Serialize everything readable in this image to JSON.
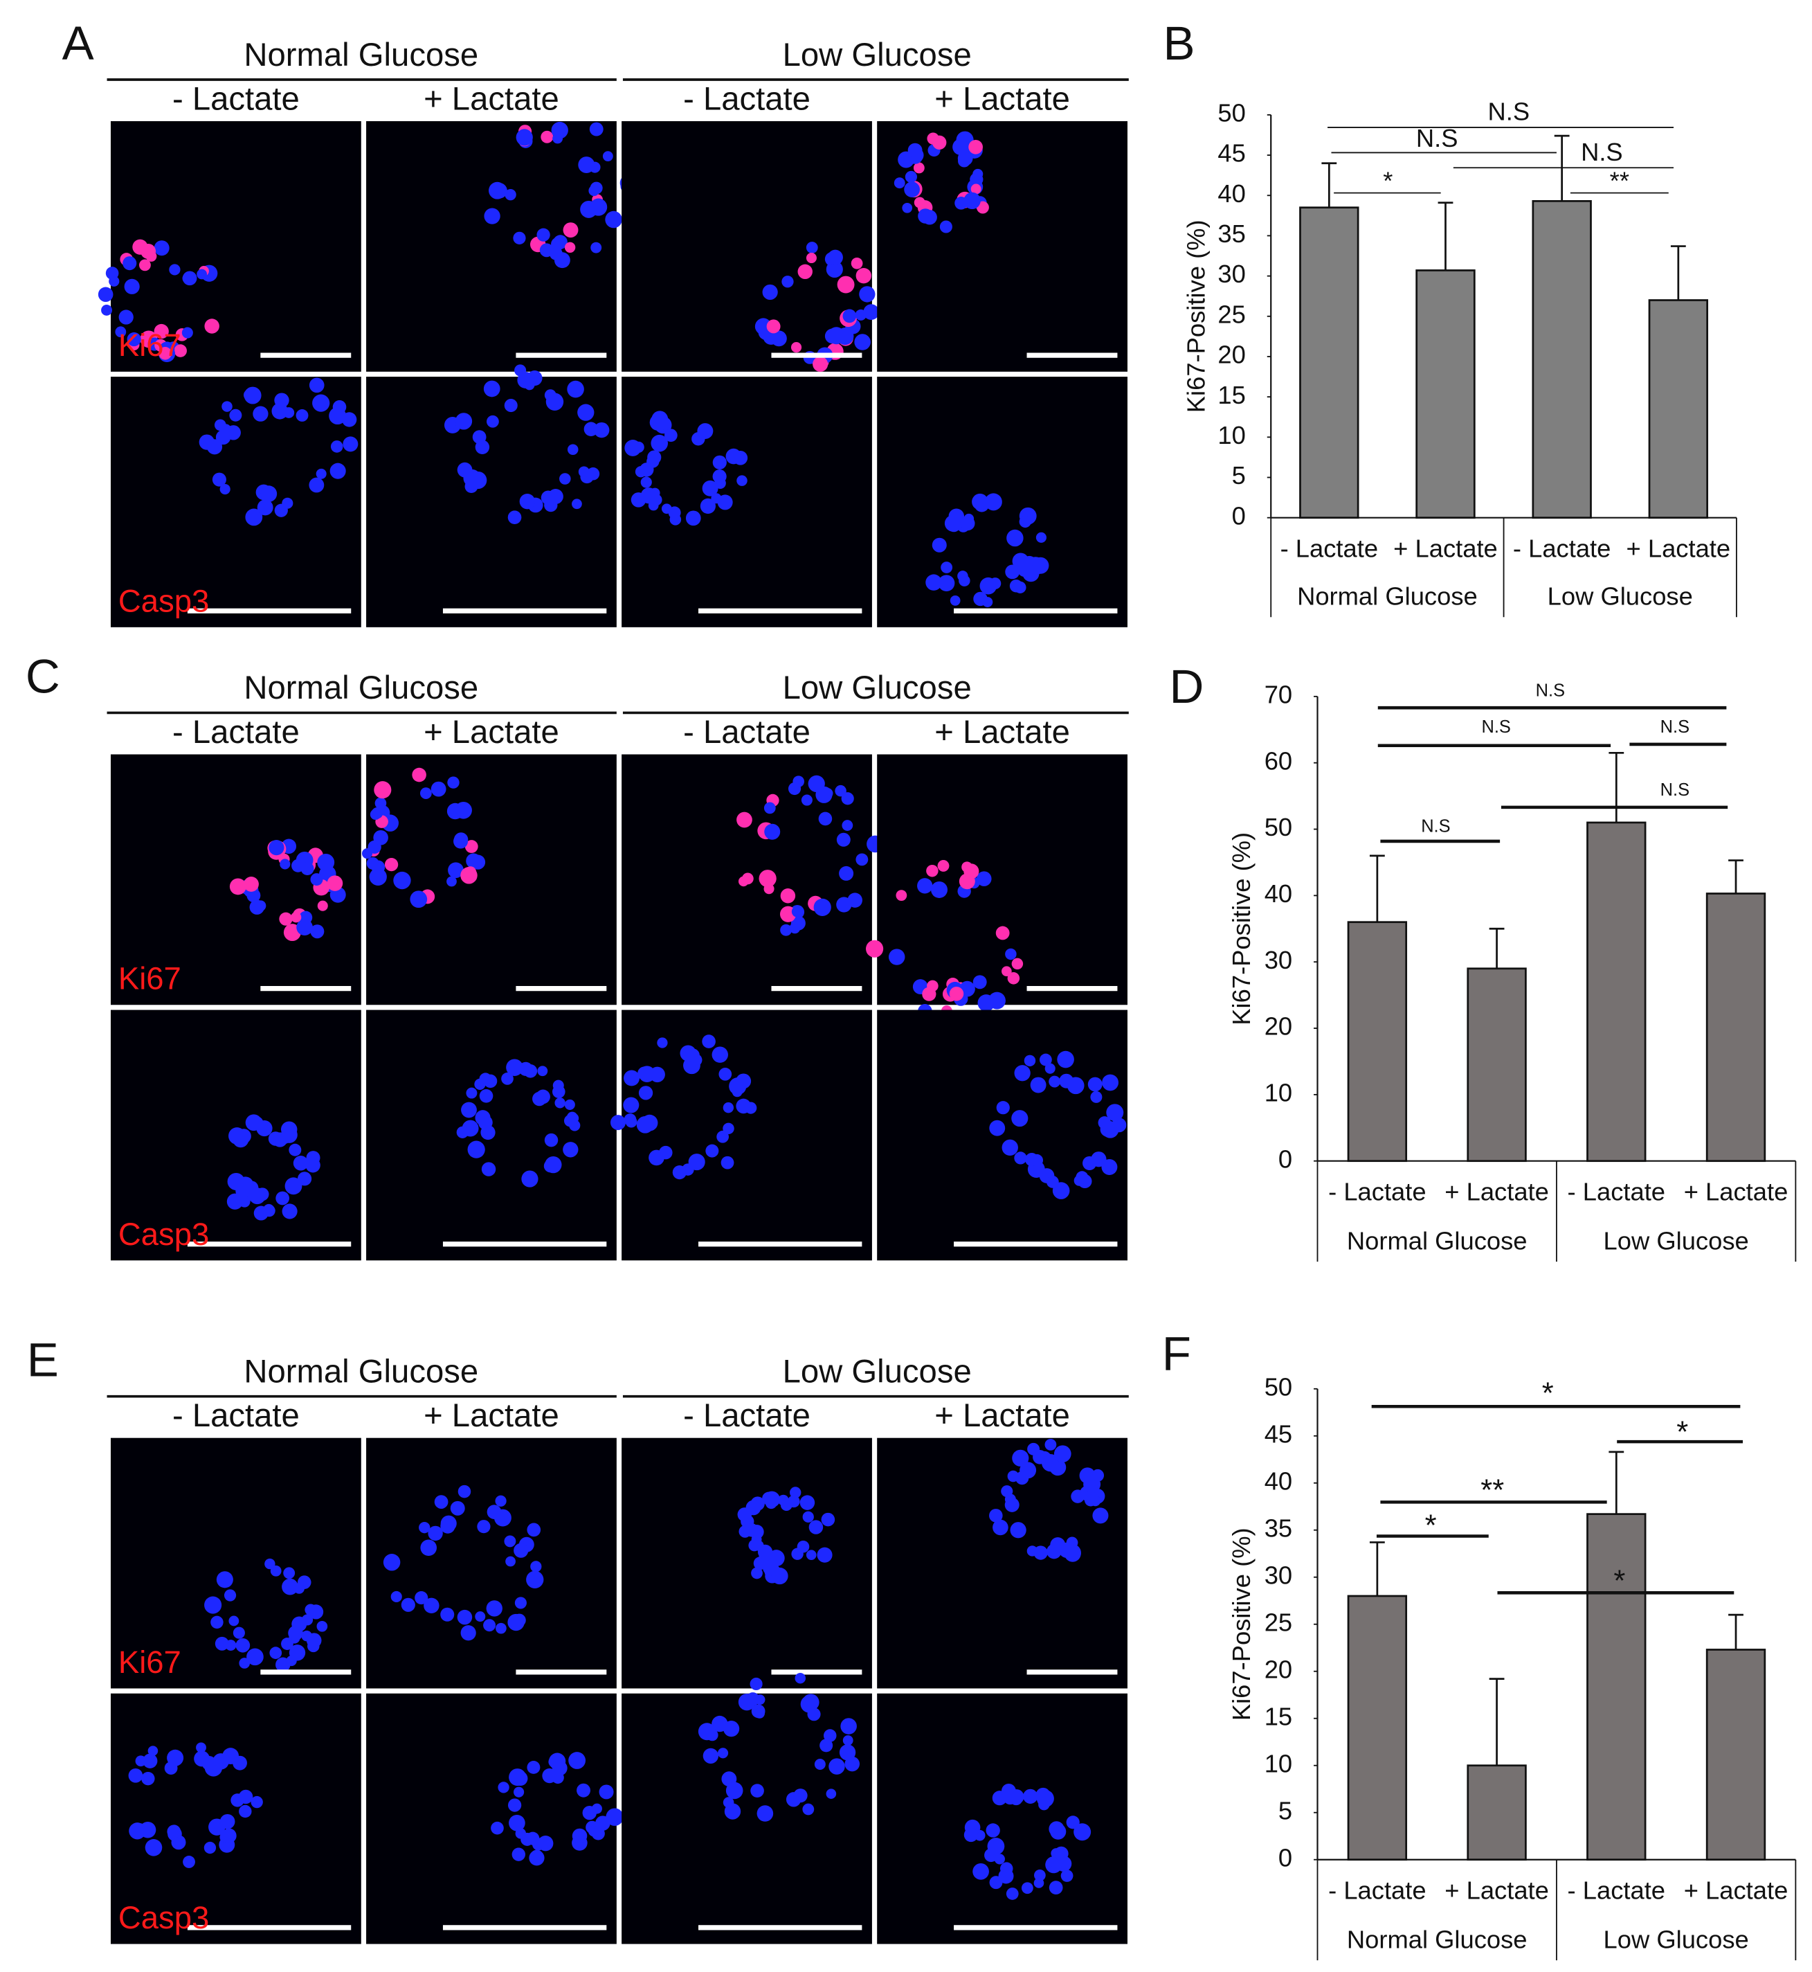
{
  "image_panels": [
    {
      "label": "A",
      "groups": [
        "Normal Glucose",
        "Low Glucose"
      ],
      "conditions": [
        "- Lactate",
        "+ Lactate",
        "- Lactate",
        "+ Lactate"
      ],
      "rows": [
        "Ki67",
        "Casp3"
      ]
    },
    {
      "label": "C",
      "groups": [
        "Normal Glucose",
        "Low Glucose"
      ],
      "conditions": [
        "- Lactate",
        "+ Lactate",
        "- Lactate",
        "+ Lactate"
      ],
      "rows": [
        "Ki67",
        "Casp3"
      ]
    },
    {
      "label": "E",
      "groups": [
        "Normal Glucose",
        "Low Glucose"
      ],
      "conditions": [
        "- Lactate",
        "+ Lactate",
        "- Lactate",
        "+ Lactate"
      ],
      "rows": [
        "Ki67",
        "Casp3"
      ]
    }
  ],
  "chart_data": [
    {
      "type": "bar",
      "label": "B",
      "y_label": "Ki67-Positive (%)",
      "categories": [
        "- Lactate",
        "+ Lactate",
        "- Lactate",
        "+ Lactate"
      ],
      "groups": [
        "Normal Glucose",
        "Low Glucose"
      ],
      "values": [
        38.5,
        30.7,
        39.3,
        27
      ],
      "errors": [
        5.5,
        8.4,
        8.1,
        6.7
      ],
      "color": "#7f7f7f",
      "ylim": [
        0,
        50
      ],
      "yticks": [
        0,
        5,
        10,
        15,
        20,
        25,
        30,
        35,
        40,
        45,
        50
      ],
      "grid": false,
      "annotations": [
        "N.S",
        "N.S",
        "N.S",
        "*",
        "**"
      ]
    },
    {
      "type": "bar",
      "label": "D",
      "y_label": "Ki67-Positive (%)",
      "categories": [
        "- Lactate",
        "+ Lactate",
        "- Lactate",
        "+ Lactate"
      ],
      "groups": [
        "Normal Glucose",
        "Low Glucose"
      ],
      "values": [
        36,
        29,
        51,
        40.3
      ],
      "errors": [
        10,
        6,
        10.5,
        5
      ],
      "color": "#767171",
      "ylim": [
        0,
        70
      ],
      "yticks": [
        0,
        10,
        20,
        30,
        40,
        50,
        60,
        70
      ],
      "grid": false,
      "annotations": [
        "N.S",
        "N.S",
        "N.S",
        "N.S",
        "N.S"
      ]
    },
    {
      "type": "bar",
      "label": "F",
      "y_label": "Ki67-Positive (%)",
      "categories": [
        "- Lactate",
        "+ Lactate",
        "- Lactate",
        "+ Lactate"
      ],
      "groups": [
        "Normal Glucose",
        "Low Glucose"
      ],
      "values": [
        28,
        10,
        36.7,
        22.3
      ],
      "errors": [
        5.7,
        9.2,
        6.6,
        3.7
      ],
      "color": "#767171",
      "ylim": [
        0,
        50
      ],
      "yticks": [
        0,
        5,
        10,
        15,
        20,
        25,
        30,
        35,
        40,
        45,
        50
      ],
      "grid": false,
      "annotations": [
        "*",
        "*",
        "**",
        "*",
        "*"
      ]
    }
  ]
}
